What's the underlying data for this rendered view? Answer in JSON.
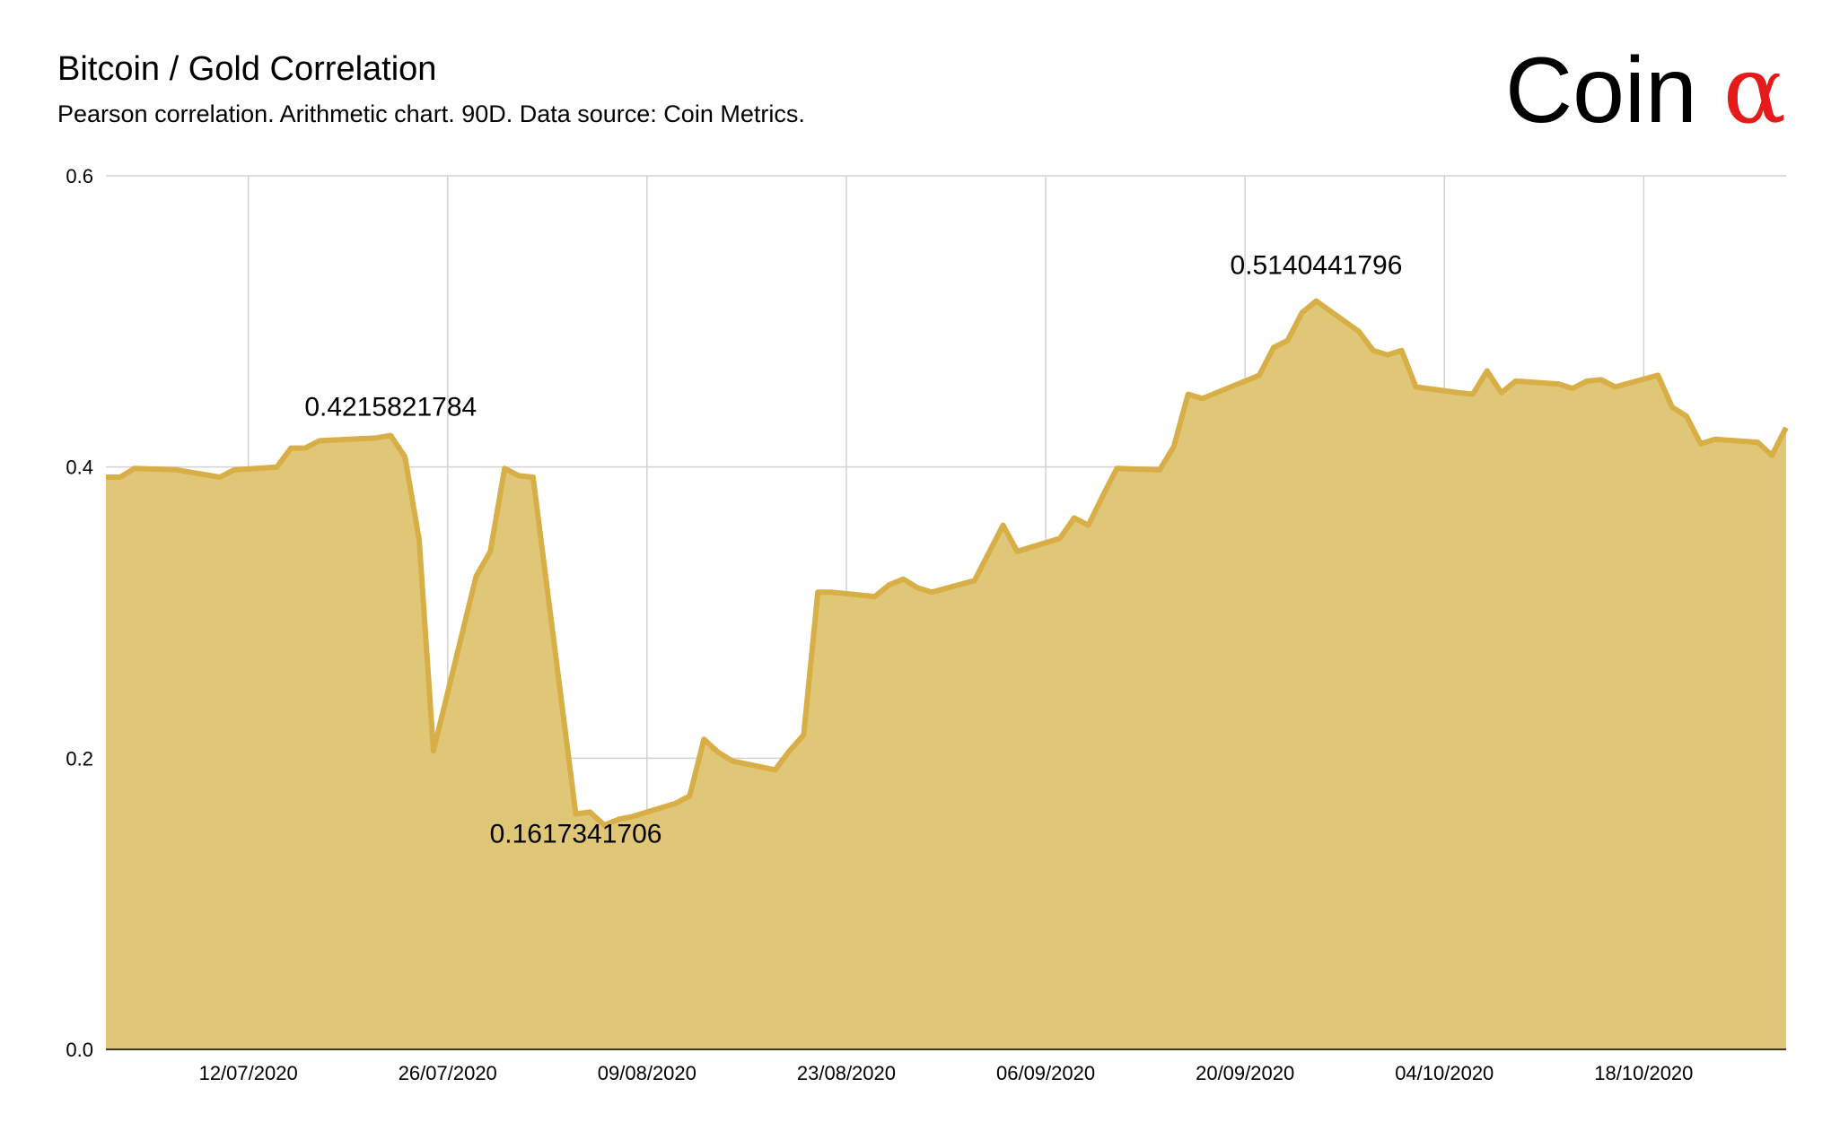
{
  "header": {
    "title": "Bitcoin / Gold Correlation",
    "subtitle": "Pearson correlation. Arithmetic chart. 90D. Data source: Coin Metrics.",
    "logo_text": "Coin",
    "logo_symbol": "α"
  },
  "colors": {
    "fill": "#e0c777",
    "line": "#d8ae46",
    "grid": "#d2d2d2",
    "logo_accent": "#e51a1a"
  },
  "chart_data": {
    "type": "area",
    "title": "Bitcoin / Gold Correlation",
    "xlabel": "",
    "ylabel": "",
    "grid": true,
    "x_start": "2020-07-02",
    "x_end": "2020-10-28",
    "ylim": [
      0,
      0.6
    ],
    "yticks": [
      {
        "value": 0.0,
        "label": "0.0"
      },
      {
        "value": 0.2,
        "label": "0.2"
      },
      {
        "value": 0.4,
        "label": "0.4"
      },
      {
        "value": 0.6,
        "label": "0.6"
      }
    ],
    "xticks": [
      {
        "date": "2020-07-12",
        "label": "12/07/2020"
      },
      {
        "date": "2020-07-26",
        "label": "26/07/2020"
      },
      {
        "date": "2020-08-09",
        "label": "09/08/2020"
      },
      {
        "date": "2020-08-23",
        "label": "23/08/2020"
      },
      {
        "date": "2020-09-06",
        "label": "06/09/2020"
      },
      {
        "date": "2020-09-20",
        "label": "20/09/2020"
      },
      {
        "date": "2020-10-04",
        "label": "04/10/2020"
      },
      {
        "date": "2020-10-18",
        "label": "18/10/2020"
      }
    ],
    "series": [
      {
        "points": [
          [
            "2020-07-02",
            0.393
          ],
          [
            "2020-07-03",
            0.393
          ],
          [
            "2020-07-04",
            0.399
          ],
          [
            "2020-07-07",
            0.398
          ],
          [
            "2020-07-10",
            0.393
          ],
          [
            "2020-07-11",
            0.398
          ],
          [
            "2020-07-14",
            0.4
          ],
          [
            "2020-07-15",
            0.413
          ],
          [
            "2020-07-16",
            0.413
          ],
          [
            "2020-07-17",
            0.418
          ],
          [
            "2020-07-21",
            0.42
          ],
          [
            "2020-07-22",
            0.4216
          ],
          [
            "2020-07-23",
            0.407
          ],
          [
            "2020-07-24",
            0.35
          ],
          [
            "2020-07-25",
            0.205
          ],
          [
            "2020-07-28",
            0.325
          ],
          [
            "2020-07-29",
            0.342
          ],
          [
            "2020-07-30",
            0.399
          ],
          [
            "2020-07-31",
            0.394
          ],
          [
            "2020-08-01",
            0.393
          ],
          [
            "2020-08-04",
            0.1617
          ],
          [
            "2020-08-05",
            0.163
          ],
          [
            "2020-08-06",
            0.154
          ],
          [
            "2020-08-07",
            0.158
          ],
          [
            "2020-08-08",
            0.16
          ],
          [
            "2020-08-11",
            0.169
          ],
          [
            "2020-08-12",
            0.174
          ],
          [
            "2020-08-13",
            0.213
          ],
          [
            "2020-08-14",
            0.204
          ],
          [
            "2020-08-15",
            0.198
          ],
          [
            "2020-08-18",
            0.192
          ],
          [
            "2020-08-19",
            0.205
          ],
          [
            "2020-08-20",
            0.216
          ],
          [
            "2020-08-21",
            0.314
          ],
          [
            "2020-08-22",
            0.314
          ],
          [
            "2020-08-25",
            0.311
          ],
          [
            "2020-08-26",
            0.319
          ],
          [
            "2020-08-27",
            0.323
          ],
          [
            "2020-08-28",
            0.317
          ],
          [
            "2020-08-29",
            0.314
          ],
          [
            "2020-09-01",
            0.322
          ],
          [
            "2020-09-03",
            0.36
          ],
          [
            "2020-09-04",
            0.342
          ],
          [
            "2020-09-07",
            0.351
          ],
          [
            "2020-09-08",
            0.365
          ],
          [
            "2020-09-09",
            0.36
          ],
          [
            "2020-09-10",
            0.38
          ],
          [
            "2020-09-11",
            0.399
          ],
          [
            "2020-09-14",
            0.398
          ],
          [
            "2020-09-15",
            0.414
          ],
          [
            "2020-09-16",
            0.45
          ],
          [
            "2020-09-17",
            0.447
          ],
          [
            "2020-09-19",
            0.455
          ],
          [
            "2020-09-21",
            0.463
          ],
          [
            "2020-09-22",
            0.482
          ],
          [
            "2020-09-23",
            0.487
          ],
          [
            "2020-09-24",
            0.506
          ],
          [
            "2020-09-25",
            0.514
          ],
          [
            "2020-09-28",
            0.493
          ],
          [
            "2020-09-29",
            0.48
          ],
          [
            "2020-09-30",
            0.477
          ],
          [
            "2020-10-01",
            0.48
          ],
          [
            "2020-10-02",
            0.455
          ],
          [
            "2020-10-05",
            0.451
          ],
          [
            "2020-10-06",
            0.45
          ],
          [
            "2020-10-07",
            0.466
          ],
          [
            "2020-10-08",
            0.451
          ],
          [
            "2020-10-09",
            0.459
          ],
          [
            "2020-10-12",
            0.457
          ],
          [
            "2020-10-13",
            0.454
          ],
          [
            "2020-10-14",
            0.459
          ],
          [
            "2020-10-15",
            0.46
          ],
          [
            "2020-10-16",
            0.455
          ],
          [
            "2020-10-19",
            0.463
          ],
          [
            "2020-10-20",
            0.441
          ],
          [
            "2020-10-21",
            0.435
          ],
          [
            "2020-10-22",
            0.416
          ],
          [
            "2020-10-23",
            0.419
          ],
          [
            "2020-10-26",
            0.417
          ],
          [
            "2020-10-27",
            0.408
          ],
          [
            "2020-10-28",
            0.427
          ]
        ]
      }
    ],
    "annotations": [
      {
        "date": "2020-07-22",
        "value": 0.4215821784,
        "label": "0.4215821784"
      },
      {
        "date": "2020-08-04",
        "value": 0.1617341706,
        "label": "0.1617341706"
      },
      {
        "date": "2020-09-25",
        "value": 0.5140441796,
        "label": "0.5140441796"
      }
    ]
  }
}
